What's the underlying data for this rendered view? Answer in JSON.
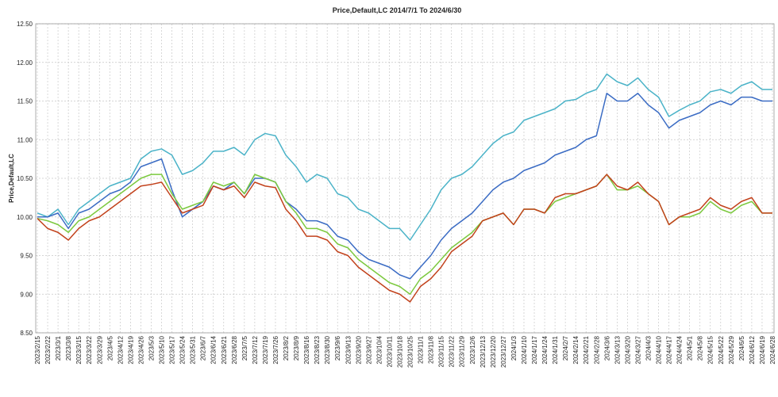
{
  "chart_data": {
    "type": "line",
    "title": "Price,Default,LC 2014/7/1 To 2024/6/30",
    "y_label": "Price,Default,LC",
    "categories": [
      "2023/2/15",
      "2023/2/22",
      "2023/3/1",
      "2023/3/8",
      "2023/3/15",
      "2023/3/22",
      "2023/3/29",
      "2023/4/5",
      "2023/4/12",
      "2023/4/19",
      "2023/4/26",
      "2023/5/3",
      "2023/5/10",
      "2023/5/17",
      "2023/5/24",
      "2023/5/31",
      "2023/6/7",
      "2023/6/14",
      "2023/6/21",
      "2023/6/28",
      "2023/7/5",
      "2023/7/12",
      "2023/7/19",
      "2023/7/26",
      "2023/8/2",
      "2023/8/9",
      "2023/8/16",
      "2023/8/23",
      "2023/8/30",
      "2023/9/6",
      "2023/9/13",
      "2023/9/20",
      "2023/9/27",
      "2023/10/4",
      "2023/10/11",
      "2023/10/18",
      "2023/10/25",
      "2023/11/1",
      "2023/11/8",
      "2023/11/15",
      "2023/11/22",
      "2023/11/29",
      "2023/12/6",
      "2023/12/13",
      "2023/12/20",
      "2023/12/27",
      "2024/1/3",
      "2024/1/10",
      "2024/1/17",
      "2024/1/24",
      "2024/1/31",
      "2024/2/7",
      "2024/2/14",
      "2024/2/21",
      "2024/2/28",
      "2024/3/6",
      "2024/3/13",
      "2024/3/20",
      "2024/3/27",
      "2024/4/3",
      "2024/4/10",
      "2024/4/17",
      "2024/4/24",
      "2024/5/1",
      "2024/5/8",
      "2024/5/15",
      "2024/5/22",
      "2024/5/29",
      "2024/6/5",
      "2024/6/12",
      "2024/6/19",
      "2024/6/28"
    ],
    "series": [
      {
        "color": "#4bb3c8",
        "values": [
          10.05,
          10.0,
          10.1,
          9.9,
          10.1,
          10.2,
          10.3,
          10.4,
          10.45,
          10.5,
          10.75,
          10.85,
          10.88,
          10.8,
          10.55,
          10.6,
          10.7,
          10.85,
          10.85,
          10.9,
          10.8,
          11.0,
          11.08,
          11.05,
          10.8,
          10.65,
          10.45,
          10.55,
          10.5,
          10.3,
          10.25,
          10.1,
          10.05,
          9.95,
          9.85,
          9.85,
          9.7,
          9.9,
          10.1,
          10.35,
          10.5,
          10.55,
          10.65,
          10.8,
          10.95,
          11.05,
          11.1,
          11.25,
          11.3,
          11.35,
          11.4,
          11.5,
          11.52,
          11.6,
          11.65,
          11.85,
          11.75,
          11.7,
          11.8,
          11.65,
          11.55,
          11.3,
          11.38,
          11.45,
          11.5,
          11.62,
          11.65,
          11.6,
          11.7,
          11.75,
          11.65,
          11.65
        ]
      },
      {
        "color": "#3b6cc4",
        "values": [
          10.0,
          10.0,
          10.05,
          9.85,
          10.05,
          10.1,
          10.2,
          10.3,
          10.35,
          10.45,
          10.65,
          10.7,
          10.75,
          10.35,
          10.0,
          10.1,
          10.2,
          10.4,
          10.35,
          10.45,
          10.3,
          10.5,
          10.5,
          10.45,
          10.2,
          10.1,
          9.95,
          9.95,
          9.9,
          9.75,
          9.7,
          9.55,
          9.45,
          9.4,
          9.35,
          9.25,
          9.2,
          9.35,
          9.5,
          9.7,
          9.85,
          9.95,
          10.05,
          10.2,
          10.35,
          10.45,
          10.5,
          10.6,
          10.65,
          10.7,
          10.8,
          10.85,
          10.9,
          11.0,
          11.05,
          11.6,
          11.5,
          11.5,
          11.6,
          11.45,
          11.35,
          11.15,
          11.25,
          11.3,
          11.35,
          11.45,
          11.5,
          11.45,
          11.55,
          11.55,
          11.5,
          11.5
        ]
      },
      {
        "color": "#7cc93f",
        "values": [
          9.98,
          9.95,
          9.9,
          9.8,
          9.95,
          10.0,
          10.1,
          10.2,
          10.3,
          10.4,
          10.5,
          10.55,
          10.55,
          10.3,
          10.1,
          10.15,
          10.2,
          10.45,
          10.4,
          10.45,
          10.3,
          10.55,
          10.5,
          10.45,
          10.2,
          10.05,
          9.85,
          9.85,
          9.8,
          9.65,
          9.6,
          9.45,
          9.35,
          9.25,
          9.15,
          9.1,
          9.0,
          9.2,
          9.3,
          9.45,
          9.6,
          9.7,
          9.8,
          9.95,
          10.0,
          10.05,
          9.9,
          10.1,
          10.1,
          10.05,
          10.2,
          10.25,
          10.3,
          10.35,
          10.4,
          10.55,
          10.35,
          10.35,
          10.4,
          10.3,
          10.2,
          9.9,
          10.0,
          10.0,
          10.05,
          10.2,
          10.1,
          10.05,
          10.15,
          10.2,
          10.05,
          10.05
        ]
      },
      {
        "color": "#c2421c",
        "values": [
          9.98,
          9.85,
          9.8,
          9.7,
          9.85,
          9.95,
          10.0,
          10.1,
          10.2,
          10.3,
          10.4,
          10.42,
          10.45,
          10.25,
          10.05,
          10.1,
          10.15,
          10.4,
          10.35,
          10.4,
          10.25,
          10.45,
          10.4,
          10.38,
          10.1,
          9.95,
          9.75,
          9.75,
          9.7,
          9.55,
          9.5,
          9.35,
          9.25,
          9.15,
          9.05,
          9.0,
          8.9,
          9.1,
          9.2,
          9.35,
          9.55,
          9.65,
          9.75,
          9.95,
          10.0,
          10.05,
          9.9,
          10.1,
          10.1,
          10.05,
          10.25,
          10.3,
          10.3,
          10.35,
          10.4,
          10.55,
          10.4,
          10.35,
          10.45,
          10.3,
          10.2,
          9.9,
          10.0,
          10.05,
          10.1,
          10.25,
          10.15,
          10.1,
          10.2,
          10.25,
          10.05,
          10.05
        ]
      }
    ],
    "ylim": [
      8.5,
      12.5
    ],
    "yticks": [
      {
        "value": 8.5,
        "label": "8.50"
      },
      {
        "value": 9,
        "label": "9.00"
      },
      {
        "value": 9.5,
        "label": "9.50"
      },
      {
        "value": 10,
        "label": "10.00"
      },
      {
        "value": 10.5,
        "label": "10.50"
      },
      {
        "value": 11,
        "label": "11.00"
      },
      {
        "value": 11.5,
        "label": "11.50"
      },
      {
        "value": 12,
        "label": "12.00"
      },
      {
        "value": 12.5,
        "label": "12.50"
      }
    ],
    "grid": true
  }
}
